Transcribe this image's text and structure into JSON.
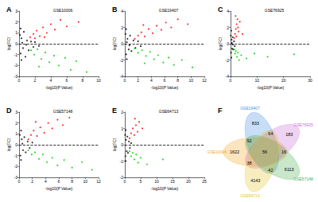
{
  "chart_data": [
    {
      "type": "scatter",
      "label": "A",
      "title": "GSE10006",
      "x_label": "-log10(P Value)",
      "y_label": "log(FC)",
      "grid": false,
      "xlim": [
        0,
        10
      ],
      "xticks": [
        0,
        2,
        4,
        6,
        8,
        10
      ],
      "ylim": [
        -3,
        3
      ],
      "yticks": [
        -3,
        -2,
        -1,
        0,
        1,
        2,
        3
      ],
      "hline": 0,
      "series": [
        {
          "color": "#000000",
          "values": [
            [
              0.1,
              0.8
            ],
            [
              0.2,
              -0.9
            ],
            [
              0.3,
              0.5
            ],
            [
              0.5,
              -0.4
            ],
            [
              0.6,
              1.1
            ],
            [
              0.8,
              -1.2
            ],
            [
              1.0,
              0.3
            ],
            [
              1.2,
              -0.6
            ],
            [
              1.5,
              0.2
            ],
            [
              1.8,
              -0.3
            ],
            [
              0.4,
              0.1
            ],
            [
              0.9,
              -0.1
            ],
            [
              2.0,
              0.15
            ],
            [
              2.5,
              -0.2
            ],
            [
              0.2,
              1.4
            ],
            [
              0.3,
              -1.5
            ]
          ]
        },
        {
          "color": "#ff0000",
          "values": [
            [
              1.4,
              0.6
            ],
            [
              1.8,
              0.9
            ],
            [
              2.2,
              1.2
            ],
            [
              2.6,
              0.7
            ],
            [
              3.0,
              1.5
            ],
            [
              3.5,
              1.0
            ],
            [
              4.0,
              1.8
            ],
            [
              4.5,
              1.3
            ],
            [
              5.2,
              2.2
            ],
            [
              6.0,
              1.6
            ],
            [
              2.0,
              0.5
            ],
            [
              3.2,
              0.6
            ],
            [
              7.5,
              2.0
            ]
          ]
        },
        {
          "color": "#00cc00",
          "values": [
            [
              1.5,
              -0.6
            ],
            [
              1.9,
              -1.0
            ],
            [
              2.3,
              -0.5
            ],
            [
              2.8,
              -1.4
            ],
            [
              3.3,
              -0.8
            ],
            [
              3.8,
              -1.7
            ],
            [
              4.4,
              -1.1
            ],
            [
              5.0,
              -2.0
            ],
            [
              5.8,
              -1.3
            ],
            [
              6.5,
              -2.4
            ],
            [
              7.2,
              -1.6
            ],
            [
              8.5,
              -2.6
            ],
            [
              2.5,
              -2.1
            ]
          ]
        }
      ]
    },
    {
      "type": "scatter",
      "label": "B",
      "title": "GSE19407",
      "x_label": "-log10(P Value)",
      "y_label": "log(FC)",
      "grid": false,
      "xlim": [
        0,
        12
      ],
      "xticks": [
        0,
        2,
        4,
        6,
        8,
        10,
        12
      ],
      "ylim": [
        -4,
        4
      ],
      "yticks": [
        -4,
        -2,
        0,
        2,
        4
      ],
      "hline": 0,
      "series": [
        {
          "color": "#000000",
          "values": [
            [
              0.1,
              1.2
            ],
            [
              0.2,
              -1.3
            ],
            [
              0.4,
              0.6
            ],
            [
              0.6,
              -0.7
            ],
            [
              0.8,
              1.0
            ],
            [
              1.0,
              -0.9
            ],
            [
              1.3,
              0.4
            ],
            [
              1.6,
              -0.5
            ],
            [
              2.0,
              0.3
            ],
            [
              2.4,
              -0.3
            ],
            [
              0.3,
              0.2
            ],
            [
              0.7,
              -0.2
            ],
            [
              0.2,
              1.8
            ],
            [
              0.3,
              -1.9
            ]
          ]
        },
        {
          "color": "#ff0000",
          "values": [
            [
              1.5,
              0.6
            ],
            [
              2.0,
              1.0
            ],
            [
              2.5,
              1.4
            ],
            [
              3.0,
              0.9
            ],
            [
              3.6,
              1.8
            ],
            [
              4.2,
              1.3
            ],
            [
              4.8,
              2.2
            ],
            [
              5.5,
              1.7
            ],
            [
              6.2,
              2.6
            ],
            [
              7.0,
              2.0
            ],
            [
              8.0,
              3.0
            ],
            [
              9.5,
              2.4
            ],
            [
              2.8,
              2.3
            ]
          ]
        },
        {
          "color": "#00cc00",
          "values": [
            [
              1.5,
              -0.6
            ],
            [
              2.0,
              -1.1
            ],
            [
              2.6,
              -0.8
            ],
            [
              3.2,
              -1.5
            ],
            [
              3.8,
              -1.0
            ],
            [
              4.4,
              -1.9
            ],
            [
              5.0,
              -1.4
            ],
            [
              5.8,
              -2.3
            ],
            [
              6.6,
              -1.7
            ],
            [
              7.4,
              -2.6
            ],
            [
              8.6,
              -2.0
            ],
            [
              10.2,
              -2.9
            ],
            [
              3.0,
              -2.4
            ]
          ]
        }
      ]
    },
    {
      "type": "scatter",
      "label": "C",
      "title": "GSE76925",
      "x_label": "-log10(P Value)",
      "y_label": "log(FC)",
      "grid": false,
      "xlim": [
        0,
        30
      ],
      "xticks": [
        0,
        10,
        20,
        30
      ],
      "ylim": [
        -4,
        4
      ],
      "yticks": [
        -4,
        -2,
        0,
        2,
        4
      ],
      "hline": 0,
      "series": [
        {
          "color": "#000000",
          "values": [
            [
              0.1,
              1.0
            ],
            [
              0.2,
              -1.1
            ],
            [
              0.4,
              0.5
            ],
            [
              0.6,
              -0.6
            ],
            [
              0.8,
              0.8
            ],
            [
              1.0,
              -0.7
            ],
            [
              1.3,
              0.3
            ],
            [
              1.6,
              -0.3
            ],
            [
              0.3,
              1.6
            ],
            [
              0.3,
              -1.7
            ],
            [
              0.5,
              0.1
            ],
            [
              0.9,
              -0.1
            ]
          ]
        },
        {
          "color": "#ff0000",
          "values": [
            [
              1.4,
              0.7
            ],
            [
              1.7,
              1.2
            ],
            [
              2.0,
              1.8
            ],
            [
              2.3,
              2.4
            ],
            [
              2.6,
              3.0
            ],
            [
              3.0,
              1.5
            ],
            [
              1.9,
              3.4
            ],
            [
              2.2,
              0.9
            ],
            [
              2.8,
              2.0
            ],
            [
              3.5,
              2.7
            ],
            [
              4.5,
              1.2
            ]
          ]
        },
        {
          "color": "#00cc00",
          "values": [
            [
              1.4,
              -0.7
            ],
            [
              1.7,
              -1.2
            ],
            [
              2.0,
              -0.9
            ],
            [
              2.4,
              -1.6
            ],
            [
              2.8,
              -1.1
            ],
            [
              3.2,
              -2.0
            ],
            [
              4.0,
              -1.4
            ],
            [
              6.0,
              -1.8
            ],
            [
              9.0,
              -1.2
            ],
            [
              14.0,
              -1.6
            ],
            [
              24.0,
              -1.3
            ]
          ]
        }
      ]
    },
    {
      "type": "scatter",
      "label": "D",
      "title": "GSE57148",
      "x_label": "-log10(P Value)",
      "y_label": "log(FC)",
      "grid": false,
      "xlim": [
        0,
        12
      ],
      "xticks": [
        0,
        2,
        4,
        6,
        8,
        10,
        12
      ],
      "ylim": [
        -3,
        3
      ],
      "yticks": [
        -3,
        -2,
        -1,
        0,
        1,
        2,
        3
      ],
      "hline": 0,
      "series": [
        {
          "color": "#000000",
          "values": [
            [
              0.1,
              0.9
            ],
            [
              0.2,
              -1.0
            ],
            [
              0.4,
              0.5
            ],
            [
              0.6,
              -0.5
            ],
            [
              0.8,
              0.7
            ],
            [
              1.0,
              -0.7
            ],
            [
              1.3,
              0.3
            ],
            [
              1.6,
              -0.3
            ],
            [
              2.0,
              0.2
            ],
            [
              0.3,
              1.3
            ],
            [
              0.3,
              -1.4
            ],
            [
              0.5,
              0.1
            ]
          ]
        },
        {
          "color": "#ff0000",
          "values": [
            [
              1.4,
              0.5
            ],
            [
              1.8,
              0.9
            ],
            [
              2.2,
              1.3
            ],
            [
              2.7,
              0.8
            ],
            [
              3.2,
              1.6
            ],
            [
              3.8,
              1.1
            ],
            [
              4.4,
              2.0
            ],
            [
              5.0,
              1.5
            ],
            [
              5.8,
              2.3
            ],
            [
              6.6,
              1.8
            ],
            [
              7.6,
              2.5
            ],
            [
              2.5,
              2.1
            ]
          ]
        },
        {
          "color": "#00cc00",
          "values": [
            [
              1.4,
              -0.5
            ],
            [
              1.9,
              -0.9
            ],
            [
              2.4,
              -0.7
            ],
            [
              3.0,
              -1.3
            ],
            [
              3.6,
              -0.9
            ],
            [
              4.2,
              -1.6
            ],
            [
              5.0,
              -1.2
            ],
            [
              5.8,
              -1.9
            ],
            [
              6.8,
              -1.4
            ],
            [
              8.0,
              -2.1
            ],
            [
              9.5,
              -1.6
            ],
            [
              11.0,
              -2.3
            ]
          ]
        }
      ]
    },
    {
      "type": "scatter",
      "label": "E",
      "title": "GSE64713",
      "x_label": "-log10(P Value)",
      "y_label": "log(FC)",
      "grid": false,
      "xlim": [
        0,
        25
      ],
      "xticks": [
        0,
        5,
        10,
        15,
        20,
        25
      ],
      "ylim": [
        -2,
        2
      ],
      "yticks": [
        -2,
        -1,
        0,
        1,
        2
      ],
      "hline": 0,
      "series": [
        {
          "color": "#000000",
          "values": [
            [
              0.1,
              0.6
            ],
            [
              0.2,
              -0.7
            ],
            [
              0.4,
              0.3
            ],
            [
              0.6,
              -0.4
            ],
            [
              0.8,
              0.5
            ],
            [
              1.0,
              -0.5
            ],
            [
              1.3,
              0.2
            ],
            [
              1.6,
              -0.2
            ],
            [
              2.0,
              0.1
            ],
            [
              0.3,
              0.9
            ],
            [
              0.3,
              -1.0
            ]
          ]
        },
        {
          "color": "#ff0000",
          "values": [
            [
              1.5,
              0.4
            ],
            [
              2.0,
              0.7
            ],
            [
              2.5,
              1.0
            ],
            [
              3.0,
              0.6
            ],
            [
              3.5,
              1.2
            ],
            [
              4.0,
              0.8
            ],
            [
              4.5,
              1.4
            ],
            [
              3.2,
              1.6
            ],
            [
              5.5,
              1.0
            ]
          ]
        },
        {
          "color": "#00cc00",
          "values": [
            [
              1.5,
              -0.4
            ],
            [
              2.0,
              -0.7
            ],
            [
              2.5,
              -0.5
            ],
            [
              3.0,
              -0.9
            ],
            [
              3.6,
              -0.6
            ],
            [
              4.2,
              -1.1
            ],
            [
              5.0,
              -0.8
            ],
            [
              7.0,
              -1.2
            ],
            [
              12.0,
              -0.9
            ]
          ]
        }
      ]
    }
  ],
  "venn": {
    "label": "F",
    "sets": [
      {
        "name": "GSE10006",
        "color": "#f5a623"
      },
      {
        "name": "GSE19407",
        "color": "#4a90e2"
      },
      {
        "name": "GSE76925",
        "color": "#c86dd7"
      },
      {
        "name": "GSE57148",
        "color": "#4caf50"
      },
      {
        "name": "GSE64713",
        "color": "#e6c229"
      }
    ],
    "counts": [
      1622,
      833,
      183,
      6113,
      4143,
      92,
      64,
      16,
      42,
      38,
      56
    ]
  }
}
